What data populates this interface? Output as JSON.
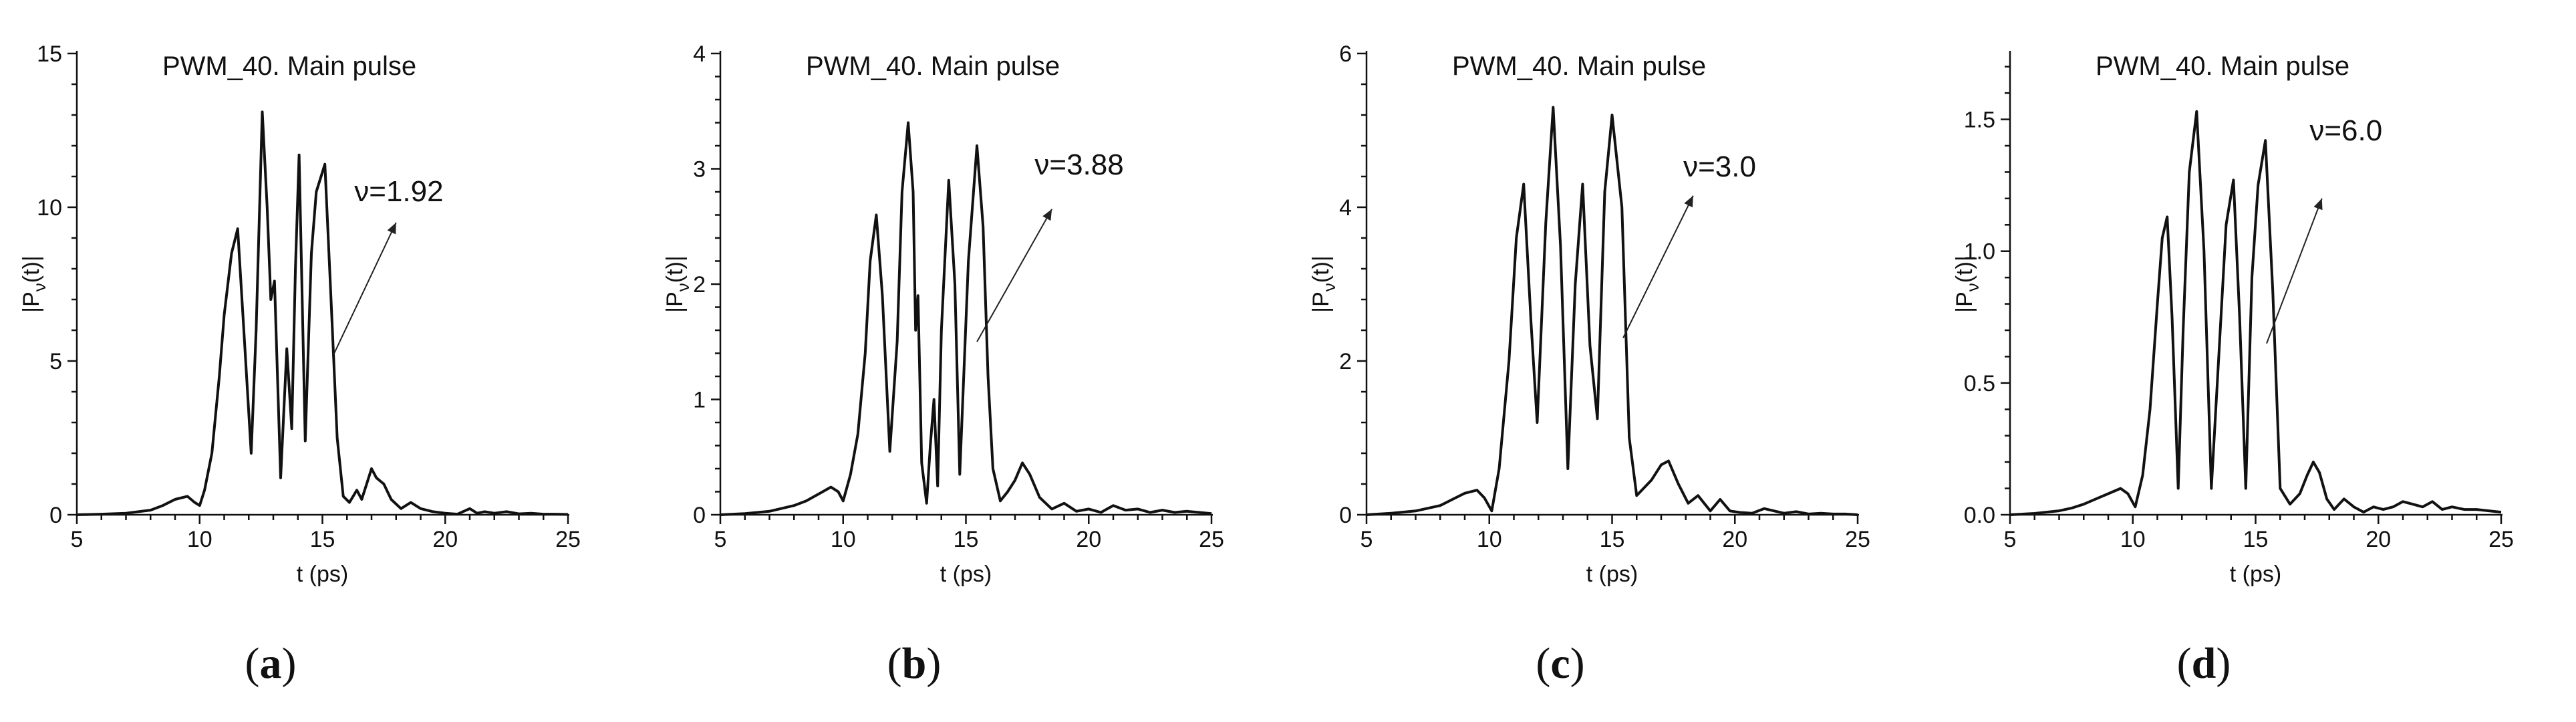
{
  "chart_data": [
    {
      "type": "line",
      "panel_label": "a",
      "title": "PWM_40. Main pulse",
      "xlabel": "t (ps)",
      "ylabel_main": "|P",
      "ylabel_sub": "ν",
      "ylabel_tail": "(t)|",
      "xlim": [
        5,
        25
      ],
      "ylim": [
        0,
        15
      ],
      "xticks": [
        5,
        10,
        15,
        20,
        25
      ],
      "yticks": [
        0,
        5,
        10,
        15
      ],
      "ytick_labels": [
        "0",
        "5",
        "10",
        "15"
      ],
      "annotation": "ν=1.92",
      "annotation_text_at": [
        16.3,
        10.2
      ],
      "annotation_arrow_from": [
        15.45,
        5.2
      ],
      "annotation_arrow_to": [
        18.0,
        9.5
      ],
      "series": [
        {
          "name": "|Pν(t)|",
          "x": [
            5.0,
            6.0,
            7.0,
            8.0,
            8.5,
            9.0,
            9.5,
            9.8,
            10.0,
            10.2,
            10.5,
            10.8,
            11.0,
            11.3,
            11.55,
            11.8,
            12.1,
            12.3,
            12.55,
            12.75,
            12.9,
            13.05,
            13.3,
            13.55,
            13.75,
            13.9,
            14.05,
            14.3,
            14.55,
            14.75,
            15.1,
            15.35,
            15.6,
            15.85,
            16.1,
            16.4,
            16.6,
            16.8,
            17.0,
            17.2,
            17.5,
            17.8,
            18.2,
            18.6,
            19.0,
            19.5,
            20.0,
            20.5,
            21.0,
            21.3,
            21.6,
            22.0,
            22.5,
            23.0,
            23.5,
            24.0,
            24.5,
            25.0
          ],
          "y": [
            0.0,
            0.02,
            0.05,
            0.15,
            0.3,
            0.5,
            0.6,
            0.4,
            0.3,
            0.8,
            2.0,
            4.5,
            6.5,
            8.5,
            9.3,
            6.0,
            2.0,
            6.0,
            13.1,
            10.0,
            7.0,
            7.6,
            1.2,
            5.4,
            2.8,
            8.0,
            11.7,
            2.4,
            8.5,
            10.5,
            11.4,
            7.0,
            2.5,
            0.6,
            0.4,
            0.8,
            0.5,
            1.0,
            1.5,
            1.2,
            1.0,
            0.5,
            0.2,
            0.4,
            0.2,
            0.1,
            0.05,
            0.02,
            0.2,
            0.05,
            0.1,
            0.05,
            0.1,
            0.03,
            0.05,
            0.02,
            0.02,
            0.01
          ]
        }
      ]
    },
    {
      "type": "line",
      "panel_label": "b",
      "title": "PWM_40. Main pulse",
      "xlabel": "t (ps)",
      "ylabel_main": "|P",
      "ylabel_sub": "ν",
      "ylabel_tail": "(t)|",
      "xlim": [
        5,
        25
      ],
      "ylim": [
        0,
        4
      ],
      "xticks": [
        5,
        10,
        15,
        20,
        25
      ],
      "yticks": [
        0,
        1,
        2,
        3,
        4
      ],
      "ytick_labels": [
        "0",
        "1",
        "2",
        "3",
        "4"
      ],
      "annotation": "ν=3.88",
      "annotation_text_at": [
        17.8,
        2.95
      ],
      "annotation_arrow_from": [
        15.45,
        1.5
      ],
      "annotation_arrow_to": [
        18.5,
        2.65
      ],
      "series": [
        {
          "name": "|Pν(t)|",
          "x": [
            5.0,
            6.0,
            7.0,
            8.0,
            8.5,
            9.0,
            9.5,
            9.8,
            10.0,
            10.3,
            10.6,
            10.9,
            11.1,
            11.35,
            11.6,
            11.9,
            12.2,
            12.4,
            12.65,
            12.85,
            12.95,
            13.05,
            13.2,
            13.4,
            13.55,
            13.7,
            13.85,
            14.0,
            14.3,
            14.55,
            14.75,
            15.1,
            15.45,
            15.7,
            15.9,
            16.1,
            16.4,
            16.7,
            17.0,
            17.3,
            17.6,
            18.0,
            18.5,
            19.0,
            19.5,
            20.0,
            20.5,
            21.0,
            21.5,
            22.0,
            22.5,
            23.0,
            23.5,
            24.0,
            24.5,
            25.0
          ],
          "y": [
            0.0,
            0.01,
            0.03,
            0.08,
            0.12,
            0.18,
            0.24,
            0.2,
            0.12,
            0.35,
            0.7,
            1.4,
            2.2,
            2.6,
            1.9,
            0.55,
            1.5,
            2.8,
            3.4,
            2.8,
            1.6,
            1.9,
            0.45,
            0.1,
            0.6,
            1.0,
            0.25,
            1.6,
            2.9,
            2.0,
            0.35,
            2.2,
            3.2,
            2.5,
            1.2,
            0.4,
            0.12,
            0.2,
            0.3,
            0.45,
            0.35,
            0.15,
            0.05,
            0.1,
            0.03,
            0.05,
            0.02,
            0.08,
            0.04,
            0.05,
            0.02,
            0.04,
            0.02,
            0.03,
            0.02,
            0.01
          ]
        }
      ]
    },
    {
      "type": "line",
      "panel_label": "c",
      "title": "PWM_40. Main pulse",
      "xlabel": "t (ps)",
      "ylabel_main": "|P",
      "ylabel_sub": "ν",
      "ylabel_tail": "(t)|",
      "xlim": [
        5,
        25
      ],
      "ylim": [
        0,
        6
      ],
      "xticks": [
        5,
        10,
        15,
        20,
        25
      ],
      "yticks": [
        0,
        2,
        4,
        6
      ],
      "ytick_labels": [
        "0",
        "2",
        "4",
        "6"
      ],
      "annotation": "ν=3.0",
      "annotation_text_at": [
        17.9,
        4.4
      ],
      "annotation_arrow_from": [
        15.45,
        2.3
      ],
      "annotation_arrow_to": [
        18.3,
        4.15
      ],
      "series": [
        {
          "name": "|Pν(t)|",
          "x": [
            5.0,
            6.0,
            7.0,
            8.0,
            8.5,
            9.0,
            9.5,
            9.8,
            10.1,
            10.4,
            10.8,
            11.1,
            11.4,
            11.7,
            11.95,
            12.3,
            12.6,
            12.9,
            13.2,
            13.5,
            13.8,
            14.1,
            14.4,
            14.7,
            15.0,
            15.4,
            15.7,
            16.0,
            16.3,
            16.6,
            17.0,
            17.3,
            17.7,
            18.1,
            18.5,
            19.0,
            19.4,
            19.8,
            20.2,
            20.7,
            21.2,
            21.6,
            22.0,
            22.5,
            23.0,
            23.5,
            24.0,
            24.5,
            25.0
          ],
          "y": [
            0.0,
            0.02,
            0.05,
            0.12,
            0.2,
            0.28,
            0.32,
            0.22,
            0.05,
            0.6,
            2.0,
            3.6,
            4.3,
            2.5,
            1.2,
            3.8,
            5.3,
            3.5,
            0.6,
            3.0,
            4.3,
            2.2,
            1.25,
            4.2,
            5.2,
            4.0,
            1.0,
            0.25,
            0.35,
            0.45,
            0.65,
            0.7,
            0.4,
            0.15,
            0.25,
            0.05,
            0.2,
            0.05,
            0.03,
            0.02,
            0.08,
            0.05,
            0.02,
            0.04,
            0.01,
            0.02,
            0.01,
            0.01,
            0.0
          ]
        }
      ]
    },
    {
      "type": "line",
      "panel_label": "d",
      "title": "PWM_40. Main pulse",
      "xlabel": "t (ps)",
      "ylabel_main": "|P",
      "ylabel_sub": "ν",
      "ylabel_tail": "(t)|",
      "xlim": [
        5,
        25
      ],
      "ylim": [
        0,
        1.75
      ],
      "xticks": [
        5,
        10,
        15,
        20,
        25
      ],
      "yticks": [
        0.0,
        0.5,
        1.0,
        1.5
      ],
      "ytick_labels": [
        "0.0",
        "0.5",
        "1.0",
        "1.5"
      ],
      "annotation": "ν=6.0",
      "annotation_text_at": [
        17.2,
        1.42
      ],
      "annotation_arrow_from": [
        15.45,
        0.65
      ],
      "annotation_arrow_to": [
        17.7,
        1.2
      ],
      "series": [
        {
          "name": "|Pν(t)|",
          "x": [
            5.0,
            6.0,
            7.0,
            7.5,
            8.0,
            8.5,
            9.0,
            9.5,
            9.8,
            10.1,
            10.4,
            10.7,
            11.0,
            11.2,
            11.4,
            11.6,
            11.85,
            12.05,
            12.3,
            12.6,
            12.9,
            13.2,
            13.5,
            13.8,
            14.1,
            14.35,
            14.6,
            14.85,
            15.1,
            15.4,
            15.7,
            16.0,
            16.4,
            16.8,
            17.1,
            17.35,
            17.6,
            17.9,
            18.2,
            18.6,
            19.0,
            19.4,
            19.8,
            20.2,
            20.6,
            21.0,
            21.4,
            21.8,
            22.2,
            22.6,
            23.0,
            23.5,
            24.0,
            24.5,
            25.0
          ],
          "y": [
            0.0,
            0.005,
            0.015,
            0.025,
            0.04,
            0.06,
            0.08,
            0.1,
            0.08,
            0.03,
            0.15,
            0.4,
            0.8,
            1.05,
            1.13,
            0.75,
            0.1,
            0.7,
            1.3,
            1.53,
            1.0,
            0.1,
            0.6,
            1.1,
            1.27,
            0.75,
            0.1,
            0.9,
            1.25,
            1.42,
            0.85,
            0.1,
            0.04,
            0.08,
            0.15,
            0.2,
            0.16,
            0.06,
            0.02,
            0.06,
            0.03,
            0.01,
            0.03,
            0.02,
            0.03,
            0.05,
            0.04,
            0.03,
            0.05,
            0.02,
            0.03,
            0.02,
            0.02,
            0.015,
            0.01
          ]
        }
      ]
    }
  ]
}
